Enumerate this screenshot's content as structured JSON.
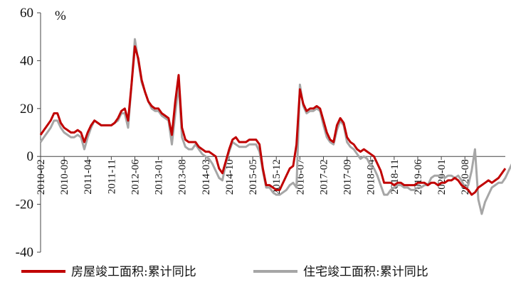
{
  "chart_data": {
    "type": "line",
    "unit_label": "%",
    "ylim": [
      -40,
      60
    ],
    "y_ticks": [
      60,
      40,
      20,
      0,
      -20,
      -40
    ],
    "x_tick_labels": [
      "2010-02",
      "2010-09",
      "2011-04",
      "2011-11",
      "2012-06",
      "2013-01",
      "2013-08",
      "2014-03",
      "2014-10",
      "2015-05",
      "2015-12",
      "2016-07",
      "2017-02",
      "2017-09",
      "2018-04",
      "2018-11",
      "2019-06",
      "2020-01",
      "2020-08"
    ],
    "grid": false,
    "legend_position": "bottom",
    "series": [
      {
        "name": "房屋竣工面积:累计同比",
        "color": "#C00000",
        "values": [
          9,
          11,
          13,
          15,
          18,
          18,
          14,
          12,
          11,
          10,
          10,
          11,
          10,
          6,
          10,
          13,
          15,
          14,
          13,
          13,
          13,
          13,
          14,
          16,
          19,
          20,
          15,
          30,
          46,
          41,
          32,
          27,
          23,
          21,
          20,
          20,
          18,
          17,
          16,
          9,
          23,
          34,
          12,
          7,
          6,
          6,
          6,
          4,
          3,
          2,
          2,
          1,
          0,
          -5,
          -7,
          -2,
          3,
          7,
          8,
          6,
          6,
          6,
          7,
          7,
          7,
          5,
          -5,
          -12,
          -12,
          -13,
          -14,
          -14,
          -11,
          -8,
          -5,
          -4,
          5,
          28,
          22,
          19,
          20,
          20,
          21,
          20,
          15,
          10,
          7,
          6,
          13,
          16,
          14,
          8,
          6,
          5,
          3,
          2,
          3,
          2,
          1,
          0,
          -3,
          -6,
          -11,
          -11,
          -11,
          -12,
          -11,
          -11,
          -12,
          -12,
          -12,
          -12,
          -11,
          -11,
          -11,
          -12,
          -11,
          -11,
          -12,
          -11,
          -11,
          -10,
          -10,
          -9,
          -10,
          -12,
          -13,
          -14,
          -16,
          -15,
          -13,
          -12,
          -11,
          -10,
          -11,
          -10,
          -9,
          -7,
          -5
        ]
      },
      {
        "name": "住宅竣工面积:累计同比",
        "color": "#A6A6A6",
        "values": [
          6,
          8,
          10,
          12,
          15,
          15,
          12,
          10,
          9,
          8,
          8,
          9,
          8,
          3,
          8,
          12,
          15,
          14,
          13,
          13,
          13,
          13,
          14,
          15,
          18,
          18,
          12,
          30,
          49,
          40,
          31,
          27,
          23,
          20,
          19,
          19,
          17,
          16,
          15,
          5,
          18,
          30,
          8,
          4,
          3,
          3,
          5,
          3,
          1,
          0,
          -1,
          -3,
          -6,
          -9,
          -10,
          -3,
          2,
          6,
          5,
          4,
          4,
          4,
          5,
          5,
          5,
          2,
          -6,
          -13,
          -13,
          -15,
          -16,
          -16,
          -15,
          -14,
          -12,
          -11,
          -13,
          30,
          21,
          18,
          19,
          19,
          20,
          19,
          13,
          8,
          6,
          5,
          11,
          15,
          13,
          6,
          4,
          3,
          1,
          -1,
          0,
          -1,
          -4,
          -5,
          -8,
          -12,
          -16,
          -16,
          -14,
          -13,
          -12,
          -12,
          -13,
          -13,
          -14,
          -14,
          -13,
          -13,
          -12,
          -12,
          -9,
          -8,
          -8,
          -8,
          -9,
          -8,
          -8,
          -9,
          -8,
          -10,
          -13,
          -12,
          -6,
          3,
          -18,
          -24,
          -19,
          -16,
          -13,
          -12,
          -11,
          -11,
          -9,
          -6,
          -3
        ]
      }
    ]
  }
}
